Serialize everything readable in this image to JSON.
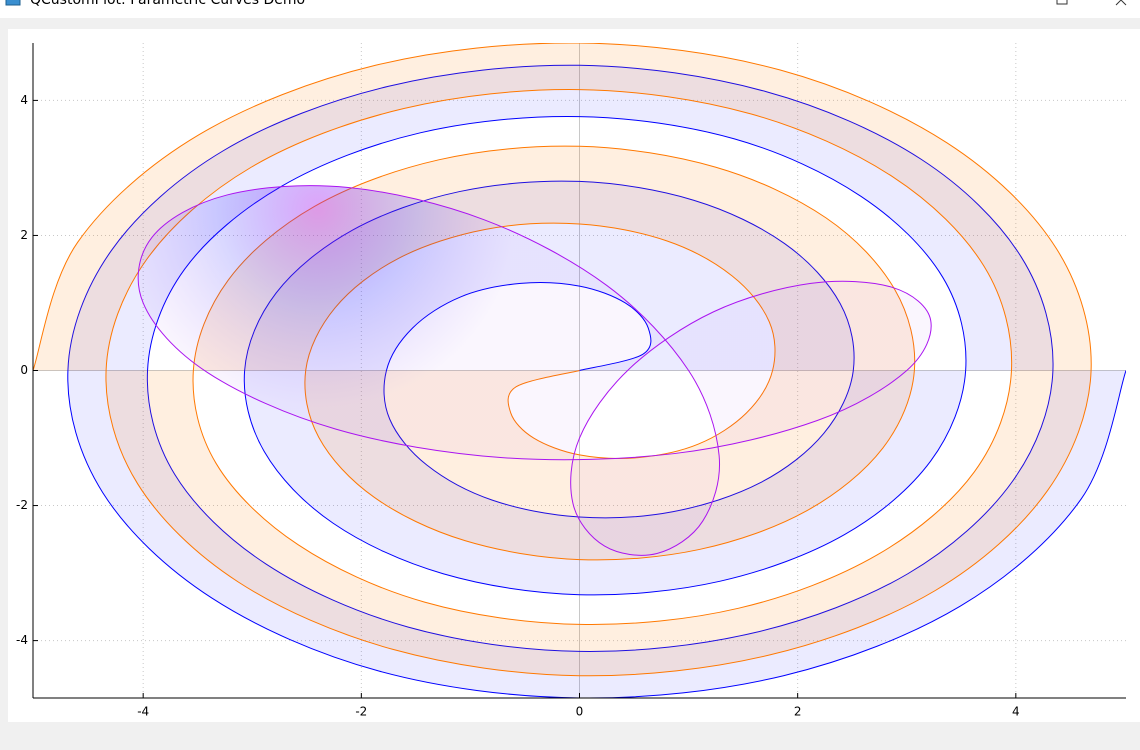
{
  "window_title": "QCustomPlot: Parametric Curves Demo",
  "chart_data": {
    "type": "parametric",
    "xlim": [
      -5.01,
      5.01
    ],
    "ylim": [
      -4.85,
      4.85
    ],
    "xticks": [
      -4,
      -2,
      0,
      2,
      4
    ],
    "yticks": [
      -4,
      -2,
      0,
      2,
      4
    ],
    "grid": true,
    "series": [
      {
        "color": "#0000ff",
        "fill": "rgba(0,0,255,0.08)",
        "closed": false,
        "x": [
          0,
          0.58,
          0.63,
          0.42,
          0,
          -0.54,
          -1.09,
          -1.53,
          -1.77,
          -1.74,
          -1.4,
          -0.8,
          0,
          0.86,
          1.66,
          2.24,
          2.51,
          2.39,
          1.88,
          1.05,
          0,
          -1.1,
          -2.08,
          -2.78,
          -3.07,
          -2.89,
          -2.26,
          -1.25,
          0,
          1.29,
          2.43,
          3.22,
          3.54,
          3.33,
          2.58,
          1.42,
          0,
          -1.46,
          -2.73,
          -3.62,
          -3.96,
          -3.71,
          -2.87,
          -1.57,
          0,
          1.61,
          3.01,
          3.97,
          4.34,
          4.05,
          3.13,
          1.71,
          0,
          -1.75,
          -3.26,
          -4.29,
          -4.69,
          -4.37,
          -3.37,
          -1.84,
          0,
          1.87,
          3.49,
          4.6,
          5.01
        ],
        "y": [
          0,
          0.24,
          0.63,
          1,
          1.25,
          1.29,
          1.09,
          0.63,
          0,
          -0.72,
          -1.4,
          -1.92,
          -2.17,
          -2.09,
          -1.66,
          -0.93,
          0,
          0.99,
          1.88,
          2.52,
          2.8,
          2.65,
          2.08,
          1.15,
          0,
          -1.2,
          -2.26,
          -3.01,
          -3.32,
          -3.12,
          -2.43,
          -1.34,
          0,
          1.38,
          2.58,
          3.43,
          3.76,
          3.52,
          2.73,
          1.5,
          0,
          -1.54,
          -2.87,
          -3.8,
          -4.16,
          -3.88,
          -3.01,
          -1.64,
          0,
          1.68,
          3.13,
          4.13,
          4.52,
          4.21,
          3.26,
          1.78,
          0,
          -1.81,
          -3.37,
          -4.45,
          -4.85,
          -4.52,
          -3.49,
          -1.9,
          0
        ]
      },
      {
        "color": "#ff7800",
        "fill": "rgba(255,120,0,0.12)",
        "closed": false,
        "x": [
          0,
          -0.58,
          -0.63,
          -0.42,
          0,
          0.54,
          1.09,
          1.53,
          1.77,
          1.74,
          1.4,
          0.8,
          0,
          -0.86,
          -1.66,
          -2.24,
          -2.51,
          -2.39,
          -1.88,
          -1.05,
          0,
          1.1,
          2.08,
          2.78,
          3.07,
          2.89,
          2.26,
          1.25,
          0,
          -1.29,
          -2.43,
          -3.22,
          -3.54,
          -3.33,
          -2.58,
          -1.42,
          0,
          1.46,
          2.73,
          3.62,
          3.96,
          3.71,
          2.87,
          1.57,
          0,
          -1.61,
          -3.01,
          -3.97,
          -4.34,
          -4.05,
          -3.13,
          -1.71,
          0,
          1.75,
          3.26,
          4.29,
          4.69,
          4.37,
          3.37,
          1.84,
          0,
          -1.87,
          -3.49,
          -4.6,
          -5.01
        ],
        "y": [
          0,
          -0.24,
          -0.63,
          -1,
          -1.25,
          -1.29,
          -1.09,
          -0.63,
          0,
          0.72,
          1.4,
          1.92,
          2.17,
          2.09,
          1.66,
          0.93,
          0,
          -0.99,
          -1.88,
          -2.52,
          -2.8,
          -2.65,
          -2.08,
          -1.15,
          0,
          1.2,
          2.26,
          3.01,
          3.32,
          3.12,
          2.43,
          1.34,
          0,
          -1.38,
          -2.58,
          -3.43,
          -3.76,
          -3.52,
          -2.73,
          -1.5,
          0,
          1.54,
          2.87,
          3.8,
          4.16,
          3.88,
          3.01,
          1.64,
          0,
          -1.68,
          -3.13,
          -4.13,
          -4.52,
          -4.21,
          -3.26,
          -1.78,
          0,
          1.81,
          3.37,
          4.45,
          4.85,
          4.52,
          3.49,
          1.9,
          0
        ]
      },
      {
        "color": "#aa14f0",
        "closed": true,
        "gradient": [
          {
            "offset": 0,
            "color": "rgba(170,20,240,0.39)"
          },
          {
            "offset": 0.5,
            "color": "rgba(20,10,255,0.16)"
          },
          {
            "offset": 1,
            "color": "rgba(120,20,240,0.04)"
          }
        ],
        "x": [
          3,
          3.22,
          2.87,
          2.12,
          1.23,
          0.46,
          0,
          -0.06,
          0.23,
          0.71,
          1.13,
          1.28,
          1,
          0.25,
          -0.87,
          -2.12,
          -3.23,
          -3.92,
          -4,
          -3.41,
          -2.23,
          -0.71,
          0.87,
          2.18
        ],
        "y": [
          0,
          0.74,
          1.23,
          1.29,
          0.87,
          0.03,
          -1,
          -1.97,
          -2.6,
          -2.71,
          -2.23,
          -1.26,
          0,
          1.26,
          2.23,
          2.71,
          2.6,
          1.97,
          1,
          -0.03,
          -0.87,
          -1.29,
          -1.23,
          -0.74
        ]
      }
    ]
  }
}
